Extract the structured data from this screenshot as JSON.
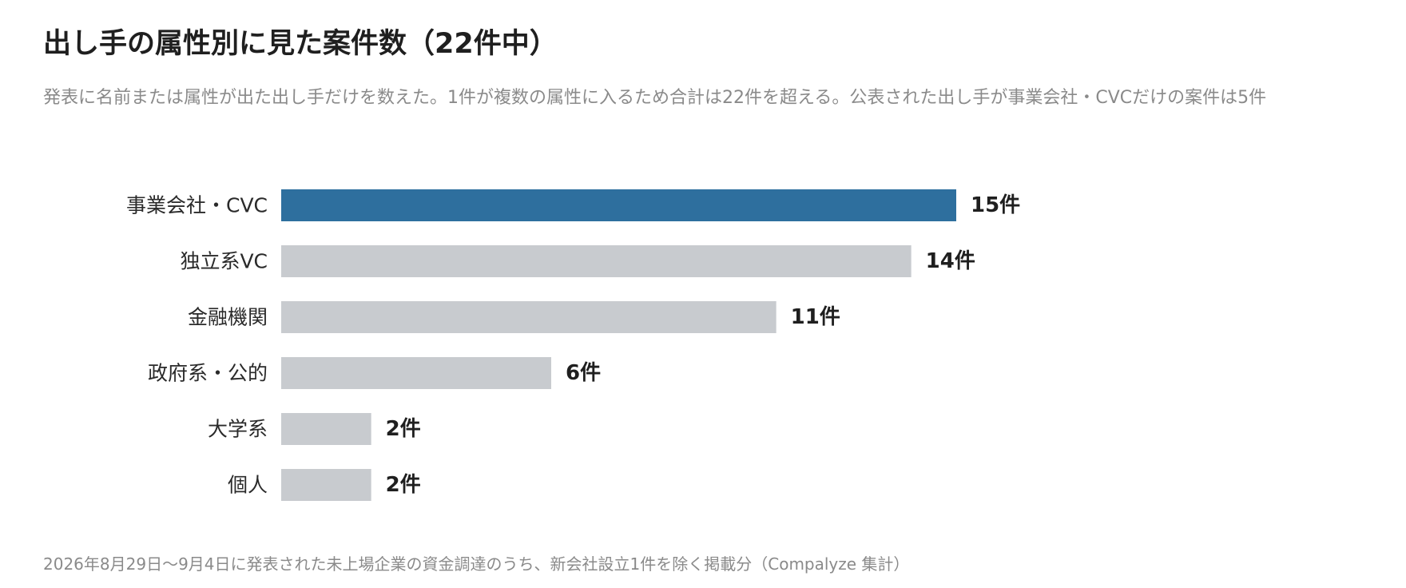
{
  "header": {
    "title": "出し手の属性別に見た案件数（22件中）",
    "subtitle": "発表に名前または属性が出た出し手だけを数えた。1件が複数の属性に入るため合計は22件を超える。公表された出し手が事業会社・CVCだけの案件は5件"
  },
  "footer": {
    "note": "2026年8月29日〜9月4日に発表された未上場企業の資金調達のうち、新会社設立1件を除く掲載分（Compalyze 集計）"
  },
  "chart_data": {
    "type": "bar",
    "orientation": "horizontal",
    "categories": [
      "事業会社・CVC",
      "独立系VC",
      "金融機関",
      "政府系・公的",
      "大学系",
      "個人"
    ],
    "values": [
      15,
      14,
      11,
      6,
      2,
      2
    ],
    "value_labels": [
      "15件",
      "14件",
      "11件",
      "6件",
      "2件",
      "2件"
    ],
    "highlight_index": 0,
    "xlim": [
      0,
      15
    ],
    "grid": false,
    "legend": "none",
    "colors": {
      "highlight": "#2e6f9e",
      "default": "#c8cbcf"
    }
  }
}
